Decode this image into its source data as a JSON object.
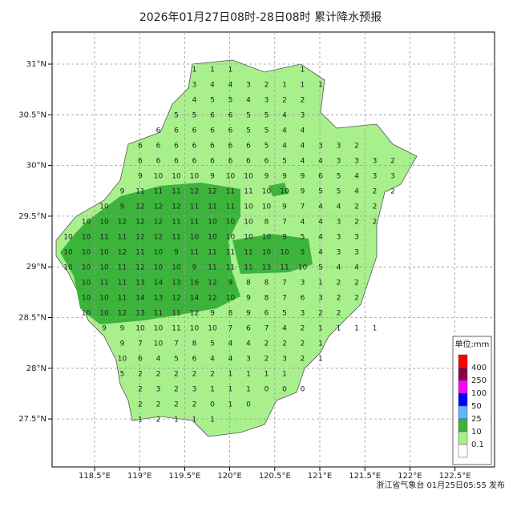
{
  "title": "2026年01月27日08时-28日08时 累计降水预报",
  "lon_labels": [
    "118.5°E",
    "119°E",
    "119.5°E",
    "120°E",
    "120.5°E",
    "121°E",
    "121.5°E",
    "122°E",
    "122.5°E"
  ],
  "lat_labels": [
    "31°N",
    "30.5°N",
    "30°N",
    "29.5°N",
    "29°N",
    "28.5°N",
    "28°N",
    "27.5°N"
  ],
  "legend": {
    "title": "单位:mm",
    "levels": [
      {
        "label": "400",
        "color": "#ff0000"
      },
      {
        "label": "250",
        "color": "#8b0045"
      },
      {
        "label": "100",
        "color": "#ff00ff"
      },
      {
        "label": "50",
        "color": "#0000ff"
      },
      {
        "label": "25",
        "color": "#5fb5ff"
      },
      {
        "label": "10",
        "color": "#3cb43c"
      },
      {
        "label": "0.1",
        "color": "#a8f08c"
      }
    ]
  },
  "credit": "浙江省气象台 01月25日05:55 发布",
  "grid": {
    "rows": [
      [
        null,
        null,
        null,
        null,
        null,
        null,
        null,
        1,
        1,
        1,
        null,
        null,
        null,
        1
      ],
      [
        null,
        null,
        null,
        null,
        null,
        null,
        null,
        3,
        4,
        4,
        3,
        2,
        1,
        1,
        1
      ],
      [
        null,
        null,
        null,
        null,
        null,
        null,
        null,
        4,
        5,
        5,
        4,
        3,
        2,
        2
      ],
      [
        null,
        null,
        null,
        null,
        null,
        null,
        5,
        5,
        6,
        6,
        5,
        5,
        4,
        3
      ],
      [
        null,
        null,
        null,
        null,
        null,
        6,
        6,
        6,
        6,
        6,
        5,
        5,
        4,
        4
      ],
      [
        null,
        null,
        null,
        null,
        6,
        6,
        6,
        6,
        6,
        6,
        6,
        5,
        4,
        4,
        3,
        3,
        2
      ],
      [
        null,
        null,
        null,
        null,
        6,
        6,
        6,
        6,
        6,
        6,
        6,
        6,
        5,
        4,
        4,
        3,
        3,
        3,
        2
      ],
      [
        null,
        null,
        null,
        null,
        9,
        10,
        10,
        10,
        9,
        10,
        10,
        9,
        9,
        9,
        6,
        5,
        4,
        3,
        3
      ],
      [
        null,
        null,
        null,
        9,
        11,
        11,
        11,
        12,
        12,
        11,
        11,
        10,
        10,
        9,
        5,
        5,
        4,
        2,
        2
      ],
      [
        null,
        null,
        10,
        9,
        12,
        12,
        12,
        11,
        11,
        11,
        10,
        10,
        9,
        7,
        4,
        4,
        2,
        2
      ],
      [
        null,
        10,
        10,
        12,
        12,
        12,
        11,
        11,
        10,
        10,
        10,
        8,
        7,
        4,
        4,
        3,
        2,
        2
      ],
      [
        10,
        10,
        11,
        11,
        12,
        12,
        11,
        10,
        10,
        10,
        10,
        10,
        9,
        5,
        4,
        3,
        3
      ],
      [
        10,
        10,
        10,
        12,
        11,
        10,
        9,
        11,
        11,
        11,
        11,
        10,
        10,
        5,
        4,
        3,
        3
      ],
      [
        10,
        10,
        10,
        11,
        12,
        10,
        10,
        9,
        11,
        11,
        11,
        13,
        11,
        10,
        5,
        4,
        4
      ],
      [
        null,
        10,
        11,
        11,
        13,
        14,
        13,
        16,
        12,
        9,
        8,
        8,
        7,
        3,
        1,
        2,
        2
      ],
      [
        null,
        10,
        10,
        11,
        14,
        13,
        12,
        14,
        12,
        10,
        9,
        8,
        7,
        6,
        3,
        2,
        2
      ],
      [
        null,
        10,
        10,
        12,
        13,
        11,
        11,
        12,
        9,
        8,
        9,
        6,
        5,
        3,
        2,
        2
      ],
      [
        null,
        null,
        9,
        9,
        10,
        10,
        11,
        10,
        10,
        7,
        6,
        7,
        4,
        2,
        1,
        1,
        1,
        1
      ],
      [
        null,
        null,
        null,
        9,
        7,
        10,
        7,
        8,
        5,
        4,
        4,
        2,
        2,
        2,
        1
      ],
      [
        null,
        null,
        null,
        10,
        6,
        4,
        5,
        6,
        4,
        4,
        3,
        2,
        3,
        2,
        1
      ],
      [
        null,
        null,
        null,
        5,
        2,
        2,
        2,
        2,
        2,
        1,
        1,
        1,
        1
      ],
      [
        null,
        null,
        null,
        null,
        2,
        3,
        2,
        3,
        1,
        1,
        1,
        0,
        0,
        0
      ],
      [
        null,
        null,
        null,
        null,
        2,
        2,
        2,
        2,
        0,
        1,
        0
      ],
      [
        null,
        null,
        null,
        null,
        1,
        2,
        1,
        1,
        1
      ]
    ]
  }
}
